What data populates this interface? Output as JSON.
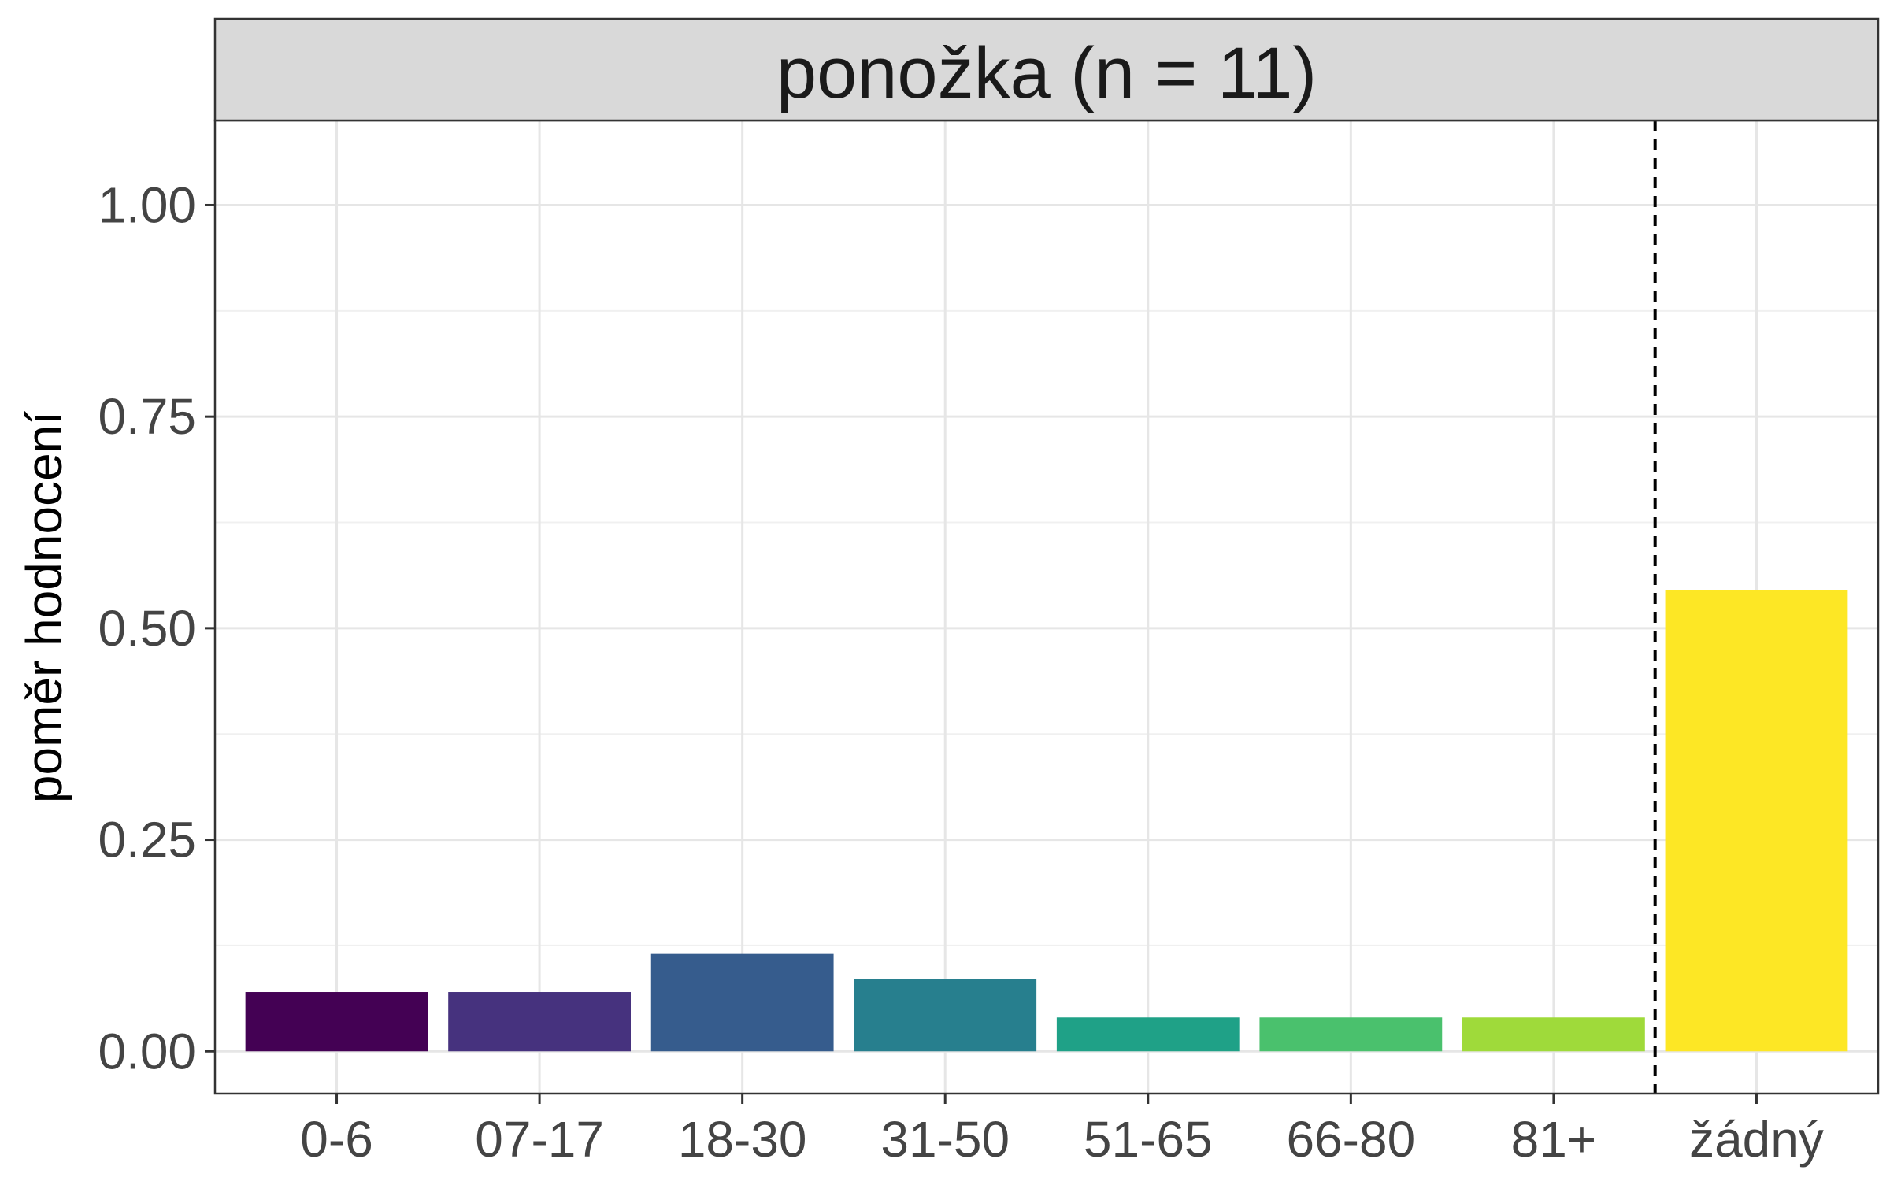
{
  "chart_data": {
    "type": "bar",
    "facet_title": "ponožka (n = 11)",
    "ylabel": "poměr hodnocení",
    "xlabel": "",
    "categories": [
      "0-6",
      "07-17",
      "18-30",
      "31-50",
      "51-65",
      "66-80",
      "81+",
      "žádný"
    ],
    "values": [
      0.07,
      0.07,
      0.115,
      0.085,
      0.04,
      0.04,
      0.04,
      0.545
    ],
    "colors": [
      "#440154",
      "#46327E",
      "#365C8D",
      "#277F8E",
      "#1FA187",
      "#4AC16D",
      "#9FDA3A",
      "#FDE725"
    ],
    "ylim": [
      -0.05,
      1.1
    ],
    "y_ticks": [
      0,
      0.25,
      0.5,
      0.75,
      1.0
    ],
    "y_tick_labels": [
      "0.00",
      "0.25",
      "0.50",
      "0.75",
      "1.00"
    ],
    "grid": true,
    "dashed_line_between": [
      "81+",
      "žádný"
    ]
  }
}
